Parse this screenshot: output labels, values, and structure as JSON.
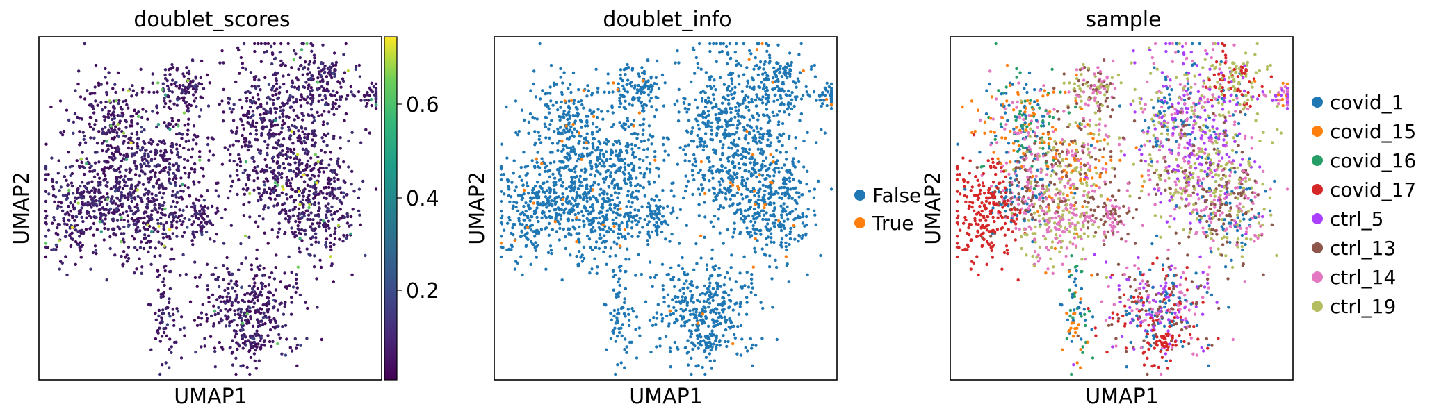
{
  "chart_data": [
    {
      "type": "scatter",
      "title": "doublet_scores",
      "xlabel": "UMAP1",
      "ylabel": "UMAP2",
      "color_mode": "continuous",
      "colormap": "viridis",
      "colorbar": {
        "range": [
          0.0,
          0.75
        ],
        "ticks": [
          0.2,
          0.4,
          0.6
        ],
        "tick_labels": [
          "0.2",
          "0.4",
          "0.6"
        ]
      },
      "ticks_shown": false
    },
    {
      "type": "scatter",
      "title": "doublet_info",
      "xlabel": "UMAP1",
      "ylabel": "UMAP2",
      "color_mode": "categorical",
      "legend": [
        {
          "label": "False",
          "color": "#1f77b4"
        },
        {
          "label": "True",
          "color": "#ff7f0e"
        }
      ],
      "legend_position": "right",
      "ticks_shown": false
    },
    {
      "type": "scatter",
      "title": "sample",
      "xlabel": "UMAP1",
      "ylabel": "UMAP2",
      "color_mode": "categorical",
      "legend": [
        {
          "label": "covid_1",
          "color": "#1f77b4"
        },
        {
          "label": "covid_15",
          "color": "#ff7f0e"
        },
        {
          "label": "covid_16",
          "color": "#279e68"
        },
        {
          "label": "covid_17",
          "color": "#d62728"
        },
        {
          "label": "ctrl_5",
          "color": "#aa40fc"
        },
        {
          "label": "ctrl_13",
          "color": "#8c564b"
        },
        {
          "label": "ctrl_14",
          "color": "#e377c2"
        },
        {
          "label": "ctrl_19",
          "color": "#b5bd61"
        }
      ],
      "legend_position": "right",
      "ticks_shown": false
    }
  ]
}
